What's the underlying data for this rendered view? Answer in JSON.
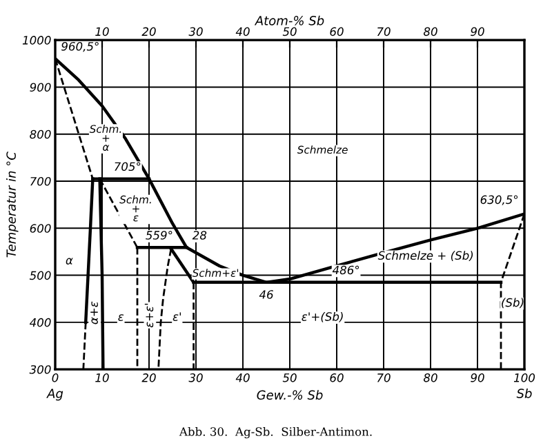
{
  "chart_data": {
    "type": "line",
    "xlabel": "Gew.-% Sb",
    "x2label": "Atom-% Sb",
    "ylabel": "Temperatur in °C",
    "xlim": [
      0,
      100
    ],
    "ylim": [
      300,
      1000
    ],
    "xticks": [
      0,
      10,
      20,
      30,
      40,
      50,
      60,
      70,
      80,
      90,
      100
    ],
    "yticks": [
      300,
      400,
      500,
      600,
      700,
      800,
      900,
      1000
    ],
    "x2lim": [
      0,
      100
    ],
    "x2ticks": [
      10,
      20,
      30,
      40,
      50,
      60,
      70,
      80,
      90
    ],
    "grid": true,
    "marker": "none",
    "series": [
      {
        "color": "#000000",
        "line_style": "solid",
        "x": [
          0,
          5,
          10,
          15,
          20,
          25,
          28,
          35,
          40,
          45,
          50,
          60,
          70,
          80,
          90,
          100
        ],
        "values": [
          960.5,
          915,
          860,
          790,
          705,
          610,
          559,
          520,
          500,
          485,
          492,
          520,
          548,
          575,
          600,
          630.5
        ]
      },
      {
        "color": "#000000",
        "line_style": "dashed",
        "x": [
          0,
          8
        ],
        "values": [
          960.5,
          705
        ]
      },
      {
        "color": "#000000",
        "line_style": "solid",
        "x": [
          8,
          20
        ],
        "values": [
          705,
          705
        ]
      },
      {
        "color": "#000000",
        "line_style": "solid",
        "x": [
          8,
          7.5,
          7,
          6.5
        ],
        "values": [
          705,
          600,
          500,
          400
        ]
      },
      {
        "color": "#000000",
        "line_style": "dashed",
        "x": [
          6.5,
          6
        ],
        "values": [
          400,
          300
        ]
      },
      {
        "color": "#000000",
        "line_style": "solid",
        "x": [
          9.5,
          10,
          10.2
        ],
        "values": [
          705,
          500,
          300
        ]
      },
      {
        "color": "#000000",
        "line_style": "dashed",
        "x": [
          9.5,
          17.5
        ],
        "values": [
          705,
          559
        ]
      },
      {
        "color": "#000000",
        "line_style": "solid",
        "x": [
          17.5,
          28
        ],
        "values": [
          559,
          559
        ]
      },
      {
        "color": "#000000",
        "line_style": "dashed",
        "x": [
          17.5,
          17.5
        ],
        "values": [
          559,
          300
        ]
      },
      {
        "color": "#000000",
        "line_style": "dashed",
        "x": [
          24.7,
          24,
          23,
          22.5,
          22
        ],
        "values": [
          556,
          520,
          450,
          400,
          300
        ]
      },
      {
        "color": "#000000",
        "line_style": "solid",
        "x": [
          24.7,
          29.5
        ],
        "values": [
          556,
          485
        ]
      },
      {
        "color": "#000000",
        "line_style": "dashed",
        "x": [
          29.5,
          29.5
        ],
        "values": [
          485,
          300
        ]
      },
      {
        "color": "#000000",
        "line_style": "solid",
        "x": [
          29.5,
          95
        ],
        "values": [
          485,
          485
        ]
      },
      {
        "color": "#000000",
        "line_style": "dashed",
        "x": [
          100,
          95,
          95
        ],
        "values": [
          630.5,
          485,
          300
        ]
      }
    ],
    "annotations": [
      {
        "text": "960,5°",
        "x": 0,
        "y": 960.5
      },
      {
        "text": "705°",
        "x": 20,
        "y": 705
      },
      {
        "text": "559°",
        "x": 28,
        "y": 559
      },
      {
        "text": "28",
        "x": 28,
        "y": 559
      },
      {
        "text": "46",
        "x": 45,
        "y": 485
      },
      {
        "text": "486°",
        "x": 62,
        "y": 485
      },
      {
        "text": "630,5°",
        "x": 100,
        "y": 630.5
      },
      "Schmelze",
      "Schm.\n+\nα",
      "Schm.\n+\nε",
      "Schm+ε'",
      "α",
      "α+ε",
      "ε",
      "ε+ε'",
      "ε'",
      "ε'+(Sb)",
      "Schmelze + (Sb)",
      "(Sb)",
      "Ag",
      "Sb",
      "Abb. 30.  Ag-Sb.  Silber-Antimon."
    ]
  }
}
